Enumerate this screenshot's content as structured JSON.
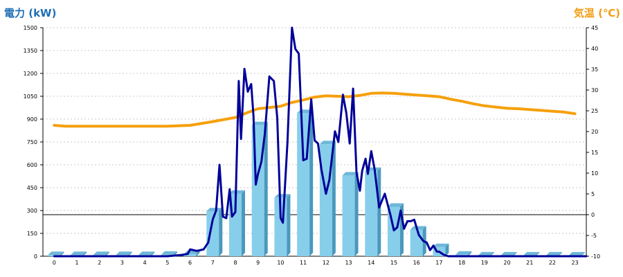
{
  "chart_data": {
    "type": "bar",
    "title": "",
    "xlabel": "",
    "left_axis": {
      "label": "電力 (kW)",
      "color": "#1f6fb5",
      "range": [
        0,
        1500
      ],
      "ticks": [
        "0",
        "150",
        "300",
        "450",
        "600",
        "750",
        "900",
        "1050",
        "1200",
        "1350",
        "1500"
      ]
    },
    "right_axis": {
      "label": "気温 (℃)",
      "color": "#f39c12",
      "range": [
        -10,
        45
      ],
      "ticks": [
        "-10",
        "-5",
        "0",
        "5",
        "10",
        "15",
        "20",
        "25",
        "30",
        "35",
        "40",
        "45"
      ]
    },
    "x_range": [
      -0.5,
      23.5
    ],
    "categories": [
      "0",
      "1",
      "2",
      "3",
      "4",
      "5",
      "6",
      "7",
      "8",
      "9",
      "10",
      "11",
      "12",
      "13",
      "14",
      "15",
      "16",
      "17",
      "18",
      "19",
      "20",
      "21",
      "22",
      "23"
    ],
    "grid": true,
    "legend": "none",
    "bars": {
      "axis": "left",
      "color": "#87ceeb",
      "values": [
        8,
        8,
        8,
        8,
        8,
        10,
        15,
        295,
        410,
        860,
        385,
        940,
        735,
        530,
        560,
        325,
        175,
        60,
        10,
        5,
        5,
        5,
        5,
        5
      ]
    },
    "power_line": {
      "axis": "left",
      "color": "#000099",
      "x": [
        0,
        5.0,
        5.6,
        5.9,
        6.0,
        6.3,
        6.6,
        6.8,
        7.0,
        7.15,
        7.3,
        7.45,
        7.6,
        7.75,
        7.85,
        8.0,
        8.15,
        8.25,
        8.4,
        8.55,
        8.7,
        8.8,
        8.9,
        9.0,
        9.15,
        9.3,
        9.5,
        9.7,
        9.85,
        10.0,
        10.1,
        10.3,
        10.5,
        10.65,
        10.8,
        11.0,
        11.15,
        11.35,
        11.5,
        11.65,
        11.8,
        12.0,
        12.15,
        12.4,
        12.55,
        12.75,
        12.9,
        13.05,
        13.2,
        13.35,
        13.5,
        13.6,
        13.75,
        13.85,
        14.0,
        14.15,
        14.35,
        14.6,
        14.85,
        15.0,
        15.15,
        15.3,
        15.45,
        15.6,
        15.75,
        15.9,
        16.1,
        16.3,
        16.45,
        16.6,
        16.75,
        16.9,
        17.0,
        17.2,
        17.4,
        17.6,
        17.75,
        18.0,
        23.5
      ],
      "y": [
        0,
        0,
        8,
        15,
        45,
        35,
        45,
        90,
        240,
        300,
        600,
        260,
        250,
        440,
        260,
        290,
        1150,
        770,
        1230,
        1080,
        1130,
        920,
        470,
        540,
        620,
        800,
        1180,
        1150,
        910,
        250,
        220,
        750,
        1500,
        1360,
        1330,
        630,
        640,
        1030,
        760,
        740,
        570,
        410,
        500,
        820,
        750,
        1060,
        940,
        740,
        1100,
        550,
        430,
        560,
        640,
        540,
        690,
        570,
        320,
        410,
        270,
        170,
        190,
        300,
        180,
        230,
        230,
        240,
        140,
        100,
        90,
        40,
        70,
        30,
        30,
        10,
        0,
        0,
        0,
        0,
        0
      ]
    },
    "temperature_line": {
      "axis": "right",
      "color": "#f5a00b",
      "x": [
        0,
        0.5,
        1,
        2,
        3,
        4,
        5,
        6,
        7,
        8,
        8.5,
        9,
        9.5,
        10,
        10.5,
        11,
        11.5,
        12,
        12.5,
        13,
        13.5,
        14,
        14.5,
        15,
        15.5,
        16,
        16.5,
        17,
        17.5,
        18,
        18.5,
        19,
        19.5,
        20,
        20.5,
        21,
        21.5,
        22,
        22.5,
        23
      ],
      "y": [
        21.5,
        21.3,
        21.3,
        21.3,
        21.3,
        21.3,
        21.3,
        21.5,
        22.4,
        23.4,
        24.5,
        25.5,
        25.8,
        26.1,
        27.0,
        27.6,
        28.3,
        28.6,
        28.5,
        28.4,
        28.7,
        29.2,
        29.3,
        29.2,
        29.0,
        28.8,
        28.6,
        28.4,
        27.8,
        27.3,
        26.7,
        26.2,
        25.9,
        25.6,
        25.5,
        25.3,
        25.1,
        24.9,
        24.7,
        24.3
      ]
    }
  }
}
